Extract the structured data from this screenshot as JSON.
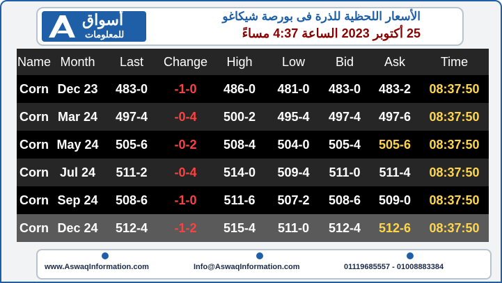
{
  "header": {
    "logo_title": "أسواق",
    "logo_subtitle": "للمعلومات",
    "title": "الأسعار اللحظية للذرة فى بورصة شيكاغو",
    "subtitle": "25 أكتوبر 2023 الساعة 4:37 مساءً"
  },
  "table": {
    "columns": [
      "Name",
      "Month",
      "Last",
      "Change",
      "High",
      "Low",
      "Bid",
      "Ask",
      "Time"
    ],
    "rows": [
      [
        "Corn",
        "Dec 23",
        "483-0",
        "-1-0",
        "486-0",
        "481-0",
        "483-0",
        "483-2",
        "08:37:50"
      ],
      [
        "Corn",
        "Mar 24",
        "497-4",
        "-0-4",
        "500-2",
        "495-4",
        "497-4",
        "497-6",
        "08:37:50"
      ],
      [
        "Corn",
        "May 24",
        "505-6",
        "-0-2",
        "508-4",
        "504-0",
        "505-4",
        "505-6",
        "08:37:50"
      ],
      [
        "Corn",
        "Jul 24",
        "511-2",
        "-0-4",
        "514-0",
        "509-4",
        "511-0",
        "511-4",
        "08:37:50"
      ],
      [
        "Corn",
        "Sep 24",
        "508-6",
        "-1-0",
        "511-6",
        "507-2",
        "508-6",
        "509-0",
        "08:37:50"
      ],
      [
        "Corn",
        "Dec 24",
        "512-4",
        "-1-2",
        "515-4",
        "511-0",
        "512-4",
        "512-6",
        "08:37:50"
      ]
    ],
    "change_color": "#ff4040",
    "time_color": "#ffd64a",
    "ask_colors": [
      "#ffffff",
      "#ffffff",
      "#ffd64a",
      "#ffffff",
      "#ffffff",
      "#ffd64a"
    ]
  },
  "footer": {
    "website": "www.AswaqInformation.com",
    "email": "Info@AswaqInformation.com",
    "phone": "01119685557 - 01008883384"
  }
}
